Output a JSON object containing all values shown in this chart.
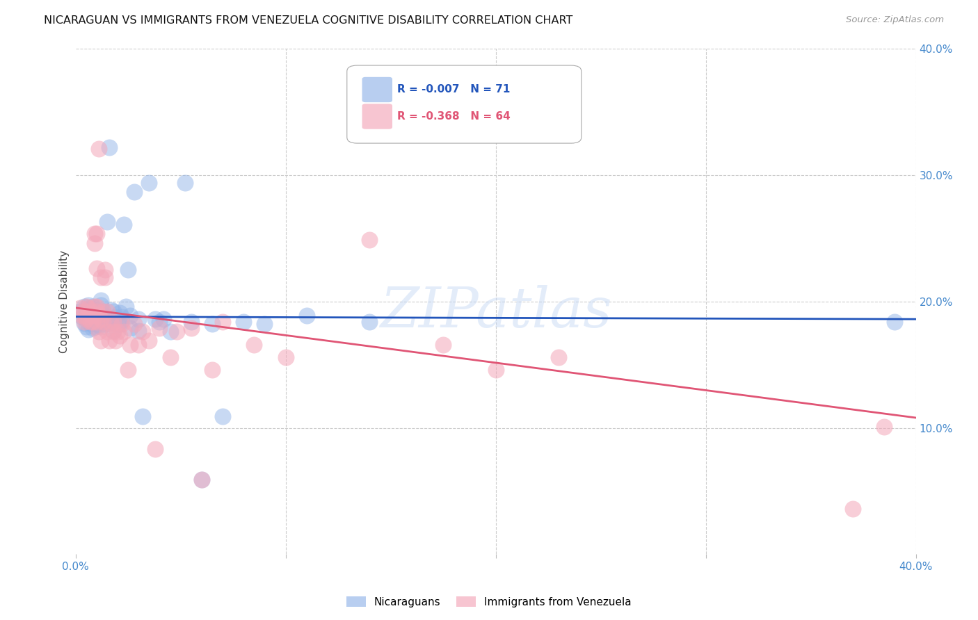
{
  "title": "NICARAGUAN VS IMMIGRANTS FROM VENEZUELA COGNITIVE DISABILITY CORRELATION CHART",
  "source": "Source: ZipAtlas.com",
  "ylabel": "Cognitive Disability",
  "xlim": [
    0.0,
    0.4
  ],
  "ylim": [
    0.0,
    0.4
  ],
  "blue_color": "#92b4e8",
  "pink_color": "#f4a7b9",
  "line_blue_color": "#2255bb",
  "line_pink_color": "#e05575",
  "watermark": "ZIPatlas",
  "background_color": "#ffffff",
  "grid_color": "#cccccc",
  "tick_label_color": "#4488cc",
  "blue_scatter": [
    [
      0.002,
      0.192
    ],
    [
      0.003,
      0.188
    ],
    [
      0.004,
      0.196
    ],
    [
      0.004,
      0.183
    ],
    [
      0.005,
      0.193
    ],
    [
      0.005,
      0.186
    ],
    [
      0.005,
      0.18
    ],
    [
      0.006,
      0.197
    ],
    [
      0.006,
      0.19
    ],
    [
      0.006,
      0.178
    ],
    [
      0.007,
      0.194
    ],
    [
      0.007,
      0.187
    ],
    [
      0.007,
      0.183
    ],
    [
      0.008,
      0.196
    ],
    [
      0.008,
      0.191
    ],
    [
      0.008,
      0.184
    ],
    [
      0.008,
      0.179
    ],
    [
      0.009,
      0.192
    ],
    [
      0.009,
      0.185
    ],
    [
      0.009,
      0.18
    ],
    [
      0.01,
      0.193
    ],
    [
      0.01,
      0.188
    ],
    [
      0.01,
      0.182
    ],
    [
      0.011,
      0.187
    ],
    [
      0.011,
      0.181
    ],
    [
      0.012,
      0.188
    ],
    [
      0.012,
      0.197
    ],
    [
      0.012,
      0.201
    ],
    [
      0.012,
      0.184
    ],
    [
      0.012,
      0.18
    ],
    [
      0.013,
      0.192
    ],
    [
      0.013,
      0.186
    ],
    [
      0.014,
      0.189
    ],
    [
      0.014,
      0.182
    ],
    [
      0.015,
      0.263
    ],
    [
      0.016,
      0.322
    ],
    [
      0.017,
      0.193
    ],
    [
      0.017,
      0.184
    ],
    [
      0.018,
      0.192
    ],
    [
      0.018,
      0.184
    ],
    [
      0.018,
      0.177
    ],
    [
      0.019,
      0.188
    ],
    [
      0.02,
      0.182
    ],
    [
      0.021,
      0.191
    ],
    [
      0.021,
      0.182
    ],
    [
      0.022,
      0.188
    ],
    [
      0.022,
      0.185
    ],
    [
      0.023,
      0.261
    ],
    [
      0.024,
      0.196
    ],
    [
      0.025,
      0.225
    ],
    [
      0.026,
      0.189
    ],
    [
      0.026,
      0.179
    ],
    [
      0.028,
      0.287
    ],
    [
      0.03,
      0.186
    ],
    [
      0.03,
      0.177
    ],
    [
      0.032,
      0.109
    ],
    [
      0.035,
      0.294
    ],
    [
      0.038,
      0.186
    ],
    [
      0.04,
      0.184
    ],
    [
      0.042,
      0.186
    ],
    [
      0.045,
      0.176
    ],
    [
      0.052,
      0.294
    ],
    [
      0.055,
      0.184
    ],
    [
      0.06,
      0.059
    ],
    [
      0.065,
      0.182
    ],
    [
      0.07,
      0.109
    ],
    [
      0.08,
      0.184
    ],
    [
      0.09,
      0.182
    ],
    [
      0.11,
      0.189
    ],
    [
      0.14,
      0.184
    ],
    [
      0.39,
      0.184
    ]
  ],
  "pink_scatter": [
    [
      0.002,
      0.195
    ],
    [
      0.003,
      0.189
    ],
    [
      0.004,
      0.192
    ],
    [
      0.004,
      0.184
    ],
    [
      0.005,
      0.186
    ],
    [
      0.005,
      0.196
    ],
    [
      0.005,
      0.188
    ],
    [
      0.006,
      0.195
    ],
    [
      0.007,
      0.19
    ],
    [
      0.007,
      0.184
    ],
    [
      0.008,
      0.189
    ],
    [
      0.008,
      0.184
    ],
    [
      0.009,
      0.254
    ],
    [
      0.009,
      0.246
    ],
    [
      0.009,
      0.196
    ],
    [
      0.009,
      0.189
    ],
    [
      0.01,
      0.196
    ],
    [
      0.01,
      0.184
    ],
    [
      0.01,
      0.254
    ],
    [
      0.01,
      0.226
    ],
    [
      0.01,
      0.192
    ],
    [
      0.011,
      0.321
    ],
    [
      0.011,
      0.189
    ],
    [
      0.011,
      0.176
    ],
    [
      0.012,
      0.169
    ],
    [
      0.012,
      0.219
    ],
    [
      0.012,
      0.186
    ],
    [
      0.013,
      0.192
    ],
    [
      0.013,
      0.184
    ],
    [
      0.014,
      0.225
    ],
    [
      0.014,
      0.219
    ],
    [
      0.015,
      0.192
    ],
    [
      0.015,
      0.176
    ],
    [
      0.016,
      0.169
    ],
    [
      0.017,
      0.182
    ],
    [
      0.018,
      0.184
    ],
    [
      0.018,
      0.176
    ],
    [
      0.019,
      0.169
    ],
    [
      0.02,
      0.176
    ],
    [
      0.021,
      0.173
    ],
    [
      0.022,
      0.182
    ],
    [
      0.023,
      0.176
    ],
    [
      0.025,
      0.146
    ],
    [
      0.026,
      0.166
    ],
    [
      0.028,
      0.182
    ],
    [
      0.03,
      0.166
    ],
    [
      0.032,
      0.176
    ],
    [
      0.035,
      0.169
    ],
    [
      0.038,
      0.083
    ],
    [
      0.04,
      0.179
    ],
    [
      0.045,
      0.156
    ],
    [
      0.048,
      0.176
    ],
    [
      0.055,
      0.179
    ],
    [
      0.06,
      0.059
    ],
    [
      0.065,
      0.146
    ],
    [
      0.07,
      0.184
    ],
    [
      0.085,
      0.166
    ],
    [
      0.1,
      0.156
    ],
    [
      0.14,
      0.249
    ],
    [
      0.175,
      0.166
    ],
    [
      0.2,
      0.146
    ],
    [
      0.23,
      0.156
    ],
    [
      0.37,
      0.036
    ],
    [
      0.385,
      0.101
    ]
  ],
  "blue_line_x": [
    0.0,
    0.4
  ],
  "blue_line_y": [
    0.188,
    0.186
  ],
  "pink_line_x": [
    0.0,
    0.4
  ],
  "pink_line_y": [
    0.195,
    0.108
  ]
}
